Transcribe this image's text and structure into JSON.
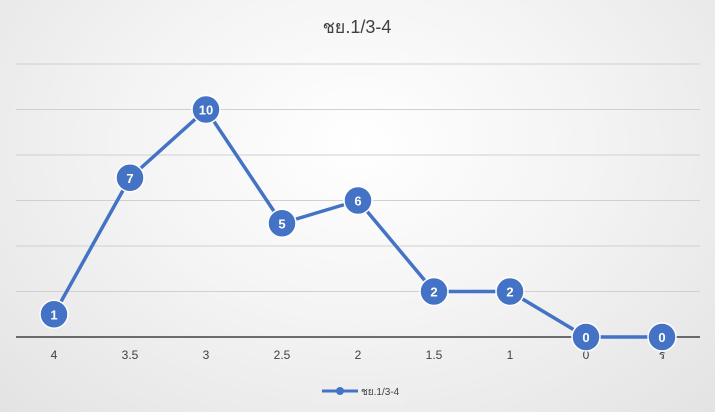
{
  "chart_data": {
    "type": "line",
    "title": "ชย.1/3-4",
    "xlabel": "",
    "ylabel": "",
    "categories": [
      "4",
      "3.5",
      "3",
      "2.5",
      "2",
      "1.5",
      "1",
      "0",
      "ร"
    ],
    "series": [
      {
        "name": "ชย.1/3-4",
        "values": [
          1,
          7,
          10,
          5,
          6,
          2,
          2,
          0,
          0
        ],
        "color": "#4472C4"
      }
    ],
    "ylim": [
      0,
      12
    ],
    "ytick_step": 2,
    "grid": true,
    "data_labels": true,
    "legend_position": "bottom"
  }
}
